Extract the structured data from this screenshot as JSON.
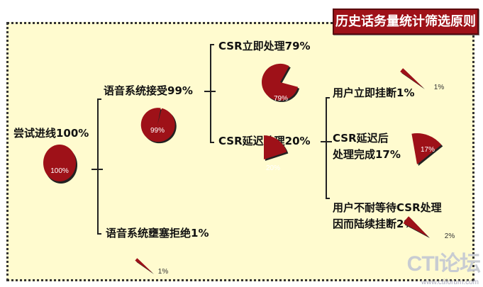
{
  "title": "历史话务量统计筛选原则",
  "nodes": {
    "root": "尝试进线100%",
    "accepted": "语音系统接受99%",
    "rejected": "语音系统壅塞拒绝1%",
    "csr_immediate": "CSR立即处理79%",
    "csr_delayed": "CSR延迟处理20%",
    "user_hangup": "用户立即挂断1%",
    "delayed_done_1": "CSR延迟后",
    "delayed_done_2": "处理完成17%",
    "impatient_1": "用户不耐等待CSR处理",
    "impatient_2": "因而陆续挂断2%"
  },
  "pies": [
    {
      "id": "root",
      "percent": 100,
      "label": "100%"
    },
    {
      "id": "accepted",
      "percent": 99,
      "label": "99%"
    },
    {
      "id": "rejected",
      "percent": 1,
      "label": "1%"
    },
    {
      "id": "csr_immediate",
      "percent": 79,
      "label": "79%"
    },
    {
      "id": "csr_delayed",
      "percent": 20,
      "label": "20%"
    },
    {
      "id": "user_hangup",
      "percent": 1,
      "label": "1%"
    },
    {
      "id": "delayed_done",
      "percent": 17,
      "label": "17%"
    },
    {
      "id": "impatient",
      "percent": 2,
      "label": "2%"
    }
  ],
  "colors": {
    "pie": "#9e1118",
    "background": "#fffbcf",
    "title_bg": "#9e1118"
  },
  "watermark": {
    "logo": "CTI论坛",
    "url": "www.ctiforum.com"
  }
}
